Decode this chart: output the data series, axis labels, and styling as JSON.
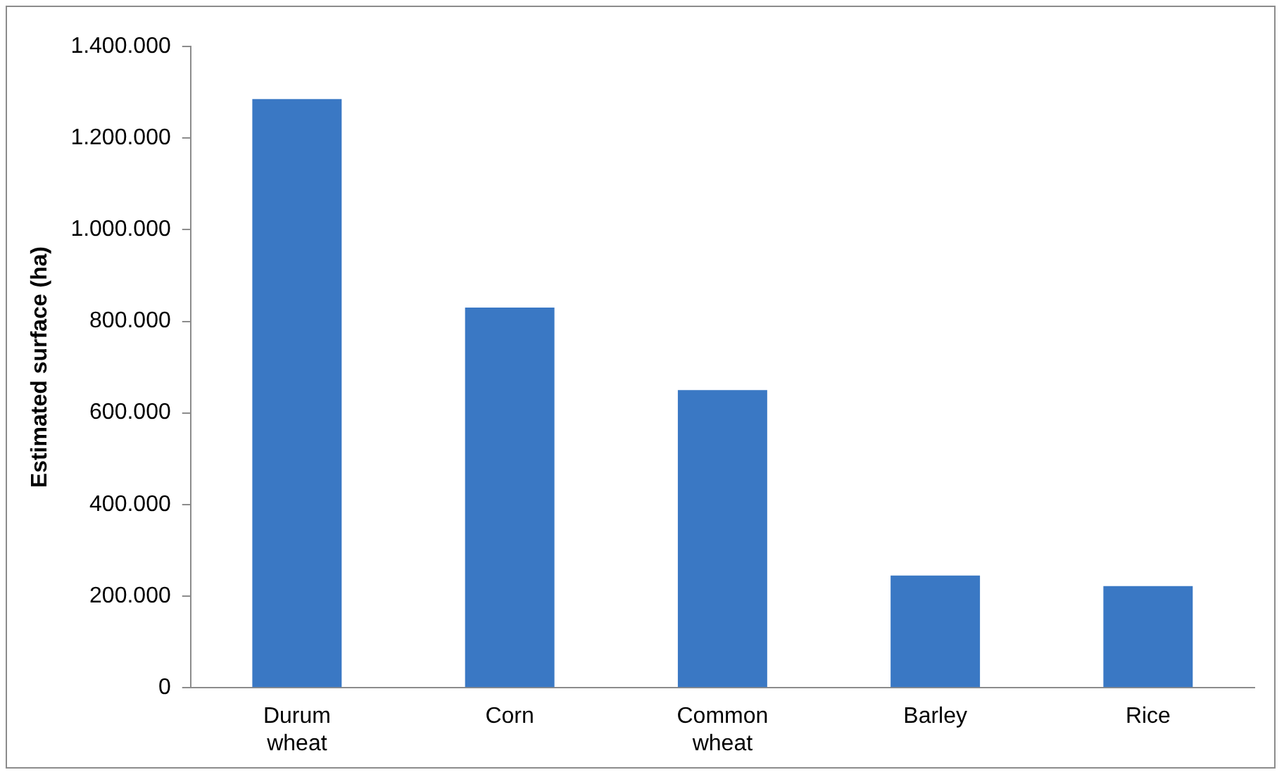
{
  "chart_data": {
    "type": "bar",
    "ylabel": "Estimated surface (ha)",
    "categories": [
      "Durum wheat",
      "Corn",
      "Common wheat",
      "Barley",
      "Rice"
    ],
    "values": [
      1285000,
      830000,
      650000,
      245000,
      222000
    ],
    "color": "#3a78c4",
    "ylim": [
      0,
      1400000
    ],
    "yticks": [
      {
        "value": 0,
        "label": "0"
      },
      {
        "value": 200000,
        "label": "200.000"
      },
      {
        "value": 400000,
        "label": "400.000"
      },
      {
        "value": 600000,
        "label": "600.000"
      },
      {
        "value": 800000,
        "label": "800.000"
      },
      {
        "value": 1000000,
        "label": "1.000.000"
      },
      {
        "value": 1200000,
        "label": "1.200.000"
      },
      {
        "value": 1400000,
        "label": "1.400.000"
      }
    ],
    "grid": false,
    "legend": false
  }
}
